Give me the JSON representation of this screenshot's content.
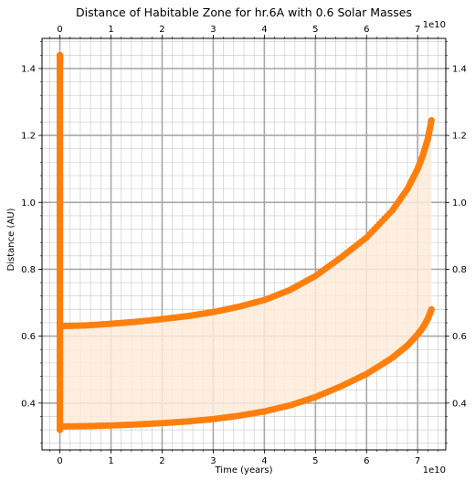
{
  "chart_data": {
    "type": "scatter",
    "title": "Distance of Habitable Zone for hr.6A with 0.6 Solar Masses",
    "xlabel": "Time (years)",
    "ylabel": "Distance (AU)",
    "x_offset_label": "1e10",
    "x_offset_label_top": "1e10",
    "xlim": [
      -0.35,
      7.55
    ],
    "ylim": [
      0.26,
      1.49
    ],
    "x_major_ticks": [
      0,
      1,
      2,
      3,
      4,
      5,
      6,
      7
    ],
    "x_tick_labels": [
      "0",
      "1",
      "2",
      "3",
      "4",
      "5",
      "6",
      "7"
    ],
    "y_major_ticks": [
      0.4,
      0.6,
      0.8,
      1.0,
      1.2,
      1.4
    ],
    "y_tick_labels": [
      "0.4",
      "0.6",
      "0.8",
      "1.0",
      "1.2",
      "1.4"
    ],
    "x_minor_step": 0.2,
    "y_minor_step": 0.04,
    "grid": true,
    "marker_color": "#ff7f0e",
    "fill_color": "#fdebd9",
    "fill_between": "inner and outer boundary",
    "series": [
      {
        "x": [
          0,
          0.5,
          1,
          1.5,
          2,
          2.5,
          3,
          3.5,
          4,
          4.5,
          5,
          5.5,
          6,
          6.5,
          6.8,
          7,
          7.1,
          7.2,
          7.27
        ],
        "y": [
          0.63,
          0.632,
          0.637,
          0.643,
          0.651,
          0.66,
          0.672,
          0.688,
          0.708,
          0.738,
          0.78,
          0.835,
          0.895,
          0.975,
          1.04,
          1.1,
          1.14,
          1.19,
          1.245
        ]
      },
      {
        "x": [
          0,
          0.5,
          1,
          1.5,
          2,
          2.5,
          3,
          3.5,
          4,
          4.5,
          5,
          5.5,
          6,
          6.5,
          6.8,
          7,
          7.1,
          7.2,
          7.27
        ],
        "y": [
          0.33,
          0.331,
          0.333,
          0.336,
          0.34,
          0.345,
          0.352,
          0.362,
          0.375,
          0.393,
          0.418,
          0.45,
          0.487,
          0.535,
          0.572,
          0.605,
          0.625,
          0.652,
          0.68
        ]
      },
      {
        "x": [
          0,
          0,
          0,
          0,
          0,
          0,
          0,
          0,
          0,
          0,
          0,
          0,
          0,
          0,
          0,
          0,
          0,
          0,
          0,
          0,
          0,
          0,
          0,
          0,
          0,
          0,
          0,
          0,
          0,
          0,
          0,
          0,
          0,
          0,
          0,
          0,
          0,
          0,
          0,
          0
        ],
        "y": [
          0.32,
          0.35,
          0.38,
          0.41,
          0.44,
          0.47,
          0.5,
          0.53,
          0.56,
          0.59,
          0.62,
          0.65,
          0.68,
          0.71,
          0.74,
          0.77,
          0.8,
          0.83,
          0.86,
          0.89,
          0.92,
          0.95,
          0.98,
          1.01,
          1.04,
          1.07,
          1.1,
          1.13,
          1.16,
          1.19,
          1.22,
          1.25,
          1.28,
          1.31,
          1.34,
          1.37,
          1.4,
          1.42,
          1.43,
          1.44
        ]
      }
    ]
  }
}
